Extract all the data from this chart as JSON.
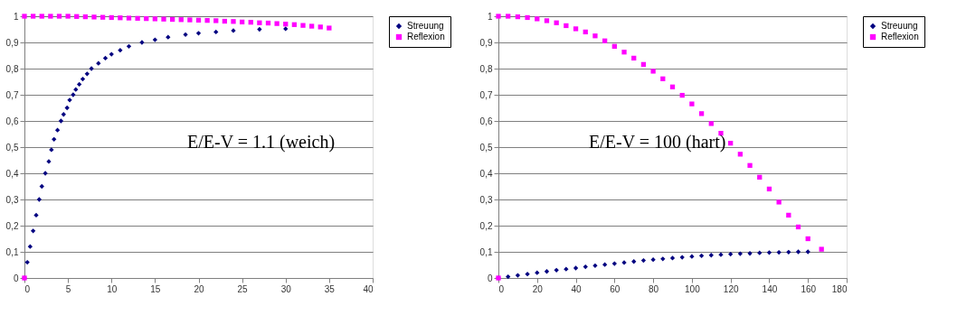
{
  "chart_data": [
    {
      "type": "scatter",
      "annotations": [
        "E/E-V = 1.1 (weich)"
      ],
      "xlim": [
        0,
        40
      ],
      "xticks": [
        0,
        5,
        10,
        15,
        20,
        25,
        30,
        35,
        40
      ],
      "ylim": [
        0,
        1
      ],
      "yticks": [
        0,
        {
          "value": 0.1,
          "label": "0,1"
        },
        {
          "value": 0.2,
          "label": "0,2"
        },
        {
          "value": 0.3,
          "label": "0,3"
        },
        {
          "value": 0.4,
          "label": "0,4"
        },
        {
          "value": 0.5,
          "label": "0,5"
        },
        {
          "value": 0.6,
          "label": "0,6"
        },
        {
          "value": 0.7,
          "label": "0,7"
        },
        {
          "value": 0.8,
          "label": "0,8"
        },
        {
          "value": 0.9,
          "label": "0,9"
        },
        1
      ],
      "grid": "y",
      "legend": "right",
      "series": [
        {
          "name": "Streuung",
          "color": "#000080",
          "marker": "diamond",
          "x": [
            0,
            0.33,
            0.66,
            1.0,
            1.35,
            1.7,
            2.0,
            2.4,
            2.8,
            3.1,
            3.4,
            3.8,
            4.2,
            4.5,
            4.9,
            5.2,
            5.6,
            5.9,
            6.3,
            6.7,
            7.2,
            7.7,
            8.5,
            9.3,
            10,
            11,
            12,
            13.5,
            15,
            16.5,
            18.5,
            20,
            22,
            24,
            27,
            30
          ],
          "values": [
            0,
            0.06,
            0.12,
            0.18,
            0.24,
            0.3,
            0.35,
            0.4,
            0.445,
            0.49,
            0.53,
            0.565,
            0.6,
            0.625,
            0.65,
            0.68,
            0.7,
            0.72,
            0.74,
            0.76,
            0.78,
            0.8,
            0.82,
            0.84,
            0.855,
            0.87,
            0.885,
            0.9,
            0.91,
            0.92,
            0.93,
            0.935,
            0.94,
            0.945,
            0.95,
            0.952
          ]
        },
        {
          "name": "Reflexion",
          "color": "#ff00ff",
          "marker": "square",
          "x": [
            0,
            0,
            1,
            2,
            3,
            4,
            5,
            6,
            7,
            8,
            9,
            10,
            11,
            12,
            13,
            14,
            15,
            16,
            17,
            18,
            19,
            20,
            21,
            22,
            23,
            24,
            25,
            26,
            27,
            28,
            29,
            30,
            31,
            32,
            33,
            34,
            35
          ],
          "values": [
            0,
            1,
            1,
            1,
            1,
            1,
            1,
            0.999,
            0.998,
            0.997,
            0.996,
            0.995,
            0.994,
            0.993,
            0.992,
            0.991,
            0.99,
            0.989,
            0.988,
            0.987,
            0.986,
            0.985,
            0.984,
            0.983,
            0.981,
            0.98,
            0.978,
            0.977,
            0.975,
            0.974,
            0.972,
            0.97,
            0.968,
            0.965,
            0.962,
            0.959,
            0.955
          ]
        }
      ]
    },
    {
      "type": "scatter",
      "annotations": [
        "E/E-V = 100 (hart)"
      ],
      "xlim": [
        0,
        180
      ],
      "xticks": [
        0,
        20,
        40,
        60,
        80,
        100,
        120,
        140,
        160,
        180
      ],
      "ylim": [
        0,
        1
      ],
      "yticks": [
        0,
        {
          "value": 0.1,
          "label": "0,1"
        },
        {
          "value": 0.2,
          "label": "0,2"
        },
        {
          "value": 0.3,
          "label": "0,3"
        },
        {
          "value": 0.4,
          "label": "0,4"
        },
        {
          "value": 0.5,
          "label": "0,5"
        },
        {
          "value": 0.6,
          "label": "0,6"
        },
        {
          "value": 0.7,
          "label": "0,7"
        },
        {
          "value": 0.8,
          "label": "0,8"
        },
        {
          "value": 0.9,
          "label": "0,9"
        },
        1
      ],
      "grid": "y",
      "legend": "right",
      "series": [
        {
          "name": "Streuung",
          "color": "#000080",
          "marker": "diamond",
          "x": [
            0,
            5,
            10,
            15,
            20,
            25,
            30,
            35,
            40,
            45,
            50,
            55,
            60,
            65,
            70,
            75,
            80,
            85,
            90,
            95,
            100,
            105,
            110,
            115,
            120,
            125,
            130,
            135,
            140,
            145,
            150,
            155,
            160
          ],
          "values": [
            0,
            0.005,
            0.01,
            0.015,
            0.02,
            0.025,
            0.03,
            0.034,
            0.038,
            0.043,
            0.047,
            0.051,
            0.055,
            0.059,
            0.063,
            0.067,
            0.07,
            0.073,
            0.076,
            0.079,
            0.082,
            0.085,
            0.087,
            0.089,
            0.091,
            0.093,
            0.094,
            0.096,
            0.097,
            0.098,
            0.099,
            0.1,
            0.1
          ]
        },
        {
          "name": "Reflexion",
          "color": "#ff00ff",
          "marker": "square",
          "x": [
            0,
            0,
            5,
            10,
            15,
            20,
            25,
            30,
            35,
            40,
            45,
            50,
            55,
            60,
            65,
            70,
            75,
            80,
            85,
            90,
            95,
            100,
            105,
            110,
            115,
            120,
            125,
            130,
            135,
            140,
            145,
            150,
            155,
            160,
            167
          ],
          "values": [
            0,
            1,
            1,
            0.998,
            0.995,
            0.99,
            0.983,
            0.975,
            0.964,
            0.952,
            0.94,
            0.925,
            0.906,
            0.885,
            0.863,
            0.84,
            0.816,
            0.79,
            0.761,
            0.73,
            0.698,
            0.665,
            0.628,
            0.59,
            0.553,
            0.515,
            0.473,
            0.43,
            0.385,
            0.34,
            0.29,
            0.24,
            0.195,
            0.15,
            0.11
          ]
        }
      ]
    }
  ]
}
